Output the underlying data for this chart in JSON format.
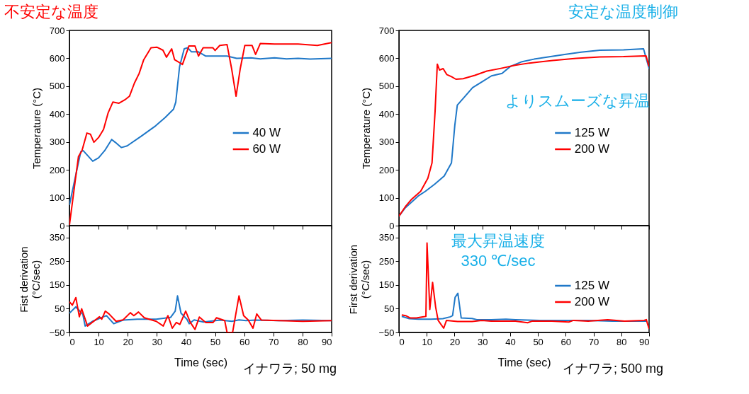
{
  "chart_data": [
    {
      "type": "line",
      "title": "不安定な温度",
      "ylabel": "Temperature (°C)",
      "xlim": [
        0,
        90
      ],
      "xticks": [
        0,
        10,
        20,
        30,
        40,
        50,
        60,
        70,
        80,
        90
      ],
      "ylim": [
        0,
        700
      ],
      "yticks": [
        0,
        100,
        200,
        300,
        400,
        500,
        600,
        700
      ],
      "tick_labels": "y",
      "legend": "right",
      "grid": false,
      "series": [
        {
          "name": "40 W",
          "color": "#1f78c8",
          "x": [
            0,
            2.3,
            3.9,
            4.7,
            8.0,
            10.0,
            12.1,
            14.5,
            15.7,
            17.8,
            19.8,
            24.7,
            29.6,
            32.9,
            35.7,
            36.5,
            37.8,
            39.4,
            40.6,
            41.9,
            44.3,
            46.8,
            54.1,
            57.4,
            62.3,
            65.5,
            70.4,
            74.5,
            78.5,
            82.6,
            90
          ],
          "values": [
            74,
            188,
            265,
            269,
            231,
            243,
            269,
            309,
            299,
            280,
            286,
            321,
            358,
            388,
            417,
            443,
            570,
            634,
            638,
            623,
            623,
            608,
            608,
            600,
            602,
            598,
            602,
            598,
            600,
            597,
            600
          ]
        },
        {
          "name": "60 W",
          "color": "#ff0000",
          "x": [
            0,
            1.9,
            3.1,
            4.3,
            6.0,
            7.2,
            8.4,
            10.0,
            11.7,
            13.3,
            14.9,
            17.0,
            19.0,
            20.6,
            22.3,
            23.9,
            25.5,
            28.0,
            30.0,
            32.1,
            33.3,
            35.1,
            36.1,
            38.8,
            41.0,
            43.1,
            44.3,
            45.9,
            49.2,
            50.0,
            51.6,
            54.1,
            55.7,
            57.2,
            58.6,
            60.2,
            62.7,
            63.9,
            65.5,
            70.4,
            78.5,
            85.1,
            90
          ],
          "values": [
            2,
            154,
            248,
            269,
            332,
            328,
            299,
            316,
            345,
            405,
            443,
            439,
            451,
            464,
            511,
            545,
            595,
            638,
            640,
            629,
            604,
            634,
            595,
            578,
            644,
            644,
            608,
            638,
            638,
            628,
            646,
            649,
            561,
            464,
            561,
            646,
            646,
            614,
            653,
            651,
            651,
            646,
            656
          ]
        }
      ]
    },
    {
      "type": "line",
      "title": "安定な温度制御",
      "ylabel": "Temperature (°C)",
      "xlim": [
        0,
        90
      ],
      "xticks": [
        0,
        10,
        20,
        30,
        40,
        50,
        60,
        70,
        80,
        90
      ],
      "ylim": [
        0,
        700
      ],
      "yticks": [
        0,
        100,
        200,
        300,
        400,
        500,
        600,
        700
      ],
      "tick_labels": "y",
      "legend": "right",
      "grid": false,
      "annotations": [
        "よりスムーズな昇温"
      ],
      "series": [
        {
          "name": "125 W",
          "color": "#1f78c8",
          "x": [
            0,
            2.3,
            4.4,
            6.9,
            9.5,
            12.9,
            16.3,
            18.9,
            20.1,
            21.0,
            23.9,
            26.5,
            29.9,
            33.3,
            37.1,
            40.1,
            44.3,
            48.6,
            53.7,
            59.6,
            65.5,
            72.3,
            80.8,
            88.0,
            90
          ],
          "values": [
            34,
            64,
            83,
            106,
            123,
            149,
            178,
            225,
            360,
            432,
            465,
            495,
            516,
            537,
            546,
            571,
            588,
            597,
            605,
            614,
            622,
            629,
            630,
            634,
            563
          ]
        },
        {
          "name": "200 W",
          "color": "#ff0000",
          "x": [
            0,
            2.3,
            4.4,
            7.8,
            10.4,
            11.9,
            13.0,
            13.8,
            14.6,
            15.9,
            17.2,
            18.9,
            20.5,
            23.1,
            27.3,
            31.6,
            36.7,
            41.8,
            46.9,
            55.3,
            63.8,
            72.3,
            80.8,
            88.9,
            90
          ],
          "values": [
            34,
            68,
            93,
            123,
            170,
            225,
            410,
            579,
            558,
            563,
            542,
            534,
            525,
            527,
            539,
            554,
            564,
            575,
            583,
            592,
            600,
            605,
            606,
            609,
            571
          ]
        }
      ]
    },
    {
      "type": "line",
      "xlabel": "Time (sec)",
      "ylabel": "Fist derivation\n(°C/sec)",
      "xlim": [
        0,
        90
      ],
      "xticks": [
        0,
        10,
        20,
        30,
        40,
        50,
        60,
        70,
        80,
        90
      ],
      "ylim": [
        -50,
        400
      ],
      "yticks": [
        -50,
        50,
        150,
        250,
        350
      ],
      "grid": false,
      "annotations": [
        "イナワラ; 50 mg"
      ],
      "series": [
        {
          "color": "#1f78c8",
          "x": [
            0,
            2.2,
            4.6,
            5.4,
            7.9,
            12.7,
            15.2,
            18.4,
            23.3,
            29.8,
            34.7,
            36.3,
            37.1,
            38.3,
            40.3,
            41.1,
            42.8,
            46.0,
            51.7,
            55.8,
            58.2,
            60.6,
            63.9,
            72.0,
            80.1,
            90
          ],
          "values": [
            31,
            58,
            26,
            -23,
            -3,
            21,
            -13,
            2,
            6,
            6,
            13,
            40,
            104,
            31,
            6,
            -13,
            3,
            -6,
            2,
            -3,
            3,
            0,
            2,
            0,
            2,
            0
          ]
        },
        {
          "color": "#ff0000",
          "x": [
            0,
            1.0,
            2.2,
            3.4,
            4.2,
            6.2,
            10.3,
            11.1,
            12.3,
            13.6,
            16.0,
            18.4,
            20.9,
            22.1,
            23.7,
            25.7,
            29.8,
            32.2,
            33.8,
            35.3,
            36.7,
            37.9,
            39.9,
            41.5,
            43.1,
            44.6,
            46.8,
            49.3,
            50.5,
            53.3,
            54.1,
            56.0,
            58.2,
            59.8,
            61.4,
            63.0,
            64.3,
            65.9,
            72.0,
            80.1,
            90
          ],
          "values": [
            79,
            65,
            97,
            16,
            50,
            -23,
            16,
            6,
            40,
            28,
            -3,
            3,
            33,
            21,
            36,
            12,
            -3,
            -23,
            21,
            -32,
            -8,
            -16,
            40,
            -8,
            -37,
            15,
            -8,
            -8,
            12,
            0,
            -50,
            -50,
            104,
            21,
            2,
            -32,
            28,
            2,
            0,
            -3,
            0
          ]
        }
      ]
    },
    {
      "type": "line",
      "xlabel": "Time (sec)",
      "ylabel": "First derivation\n(°C/sec)",
      "xlim": [
        0,
        90
      ],
      "xticks": [
        0,
        10,
        20,
        30,
        40,
        50,
        60,
        70,
        80,
        90
      ],
      "ylim": [
        -50,
        400
      ],
      "yticks": [
        -50,
        50,
        150,
        250,
        350
      ],
      "legend": "right",
      "grid": false,
      "annotations": [
        "最大昇温速度\n330 ℃/sec",
        "イナワラ; 500 mg"
      ],
      "series": [
        {
          "name": "125 W",
          "color": "#1f78c8",
          "x": [
            1.0,
            3.7,
            7.1,
            11.5,
            15.8,
            18.5,
            19.3,
            20.2,
            21.2,
            22.4,
            26.3,
            28.0,
            33.2,
            38.5,
            41.9,
            50.6,
            59.4,
            68.1,
            76.8,
            85.5,
            89.0
          ],
          "values": [
            18,
            8,
            6,
            6,
            8,
            16,
            21,
            98,
            115,
            11,
            9,
            4,
            4,
            6,
            4,
            1,
            1,
            1,
            -2,
            -2,
            -2
          ]
        },
        {
          "name": "200 W",
          "color": "#ff0000",
          "x": [
            1.0,
            2.4,
            4.1,
            6.3,
            8.9,
            9.7,
            10.1,
            11.1,
            12.1,
            13.2,
            14.1,
            16.1,
            17.1,
            21.1,
            26.3,
            29.8,
            33.2,
            41.9,
            46.3,
            48.0,
            55.0,
            61.1,
            62.8,
            68.1,
            75.1,
            81.2,
            88.2,
            89.0,
            90
          ],
          "values": [
            24,
            21,
            11,
            11,
            16,
            18,
            327,
            47,
            161,
            57,
            1,
            -32,
            1,
            -4,
            -4,
            1,
            -2,
            -2,
            -9,
            -2,
            -2,
            -6,
            1,
            -2,
            4,
            -2,
            1,
            4,
            -35
          ]
        }
      ]
    }
  ]
}
